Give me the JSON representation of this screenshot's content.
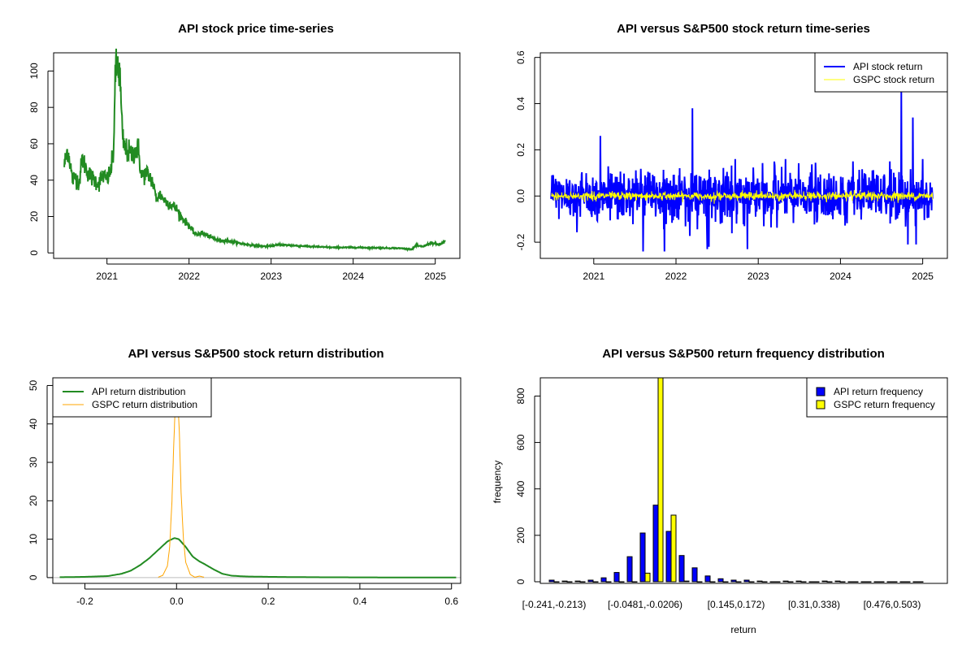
{
  "chart_data": [
    {
      "type": "line",
      "title": "API stock price time-series",
      "xlabel": "",
      "ylabel": "",
      "xlim": [
        2020.35,
        2025.3
      ],
      "ylim": [
        -3,
        110
      ],
      "x_ticks": [
        "2021",
        "2022",
        "2023",
        "2024",
        "2025"
      ],
      "x_tick_values": [
        2021,
        2022,
        2023,
        2024,
        2025
      ],
      "y_ticks": [
        "0",
        "20",
        "40",
        "60",
        "80",
        "100"
      ],
      "y_tick_values": [
        0,
        20,
        40,
        60,
        80,
        100
      ],
      "grid": false,
      "series": [
        {
          "name": "API price",
          "color": "#228b22",
          "x": [
            2020.48,
            2020.52,
            2020.55,
            2020.58,
            2020.62,
            2020.66,
            2020.7,
            2020.75,
            2020.8,
            2020.85,
            2020.9,
            2020.95,
            2021.0,
            2021.05,
            2021.08,
            2021.1,
            2021.13,
            2021.16,
            2021.19,
            2021.22,
            2021.3,
            2021.38,
            2021.42,
            2021.48,
            2021.55,
            2021.6,
            2021.65,
            2021.72,
            2021.8,
            2021.85,
            2021.92,
            2022.0,
            2022.08,
            2022.15,
            2022.25,
            2022.35,
            2022.5,
            2022.65,
            2022.8,
            2022.95,
            2023.1,
            2023.3,
            2023.5,
            2023.75,
            2024.0,
            2024.3,
            2024.6,
            2024.72,
            2024.76,
            2024.85,
            2024.95,
            2025.05,
            2025.12
          ],
          "values": [
            48,
            57,
            50,
            40,
            42,
            38,
            52,
            46,
            42,
            40,
            38,
            43,
            40,
            46,
            55,
            96,
            105,
            95,
            63,
            57,
            54,
            58,
            42,
            44,
            40,
            30,
            32,
            28,
            26,
            24,
            19,
            15,
            10,
            11,
            9,
            7,
            6.5,
            5,
            4,
            3.5,
            4.5,
            4,
            3.5,
            3,
            3,
            2.8,
            2.5,
            2,
            4,
            3.5,
            5.5,
            4.5,
            6.5
          ]
        }
      ]
    },
    {
      "type": "line",
      "title": "API versus S&P500 stock return time-series",
      "xlabel": "",
      "ylabel": "",
      "xlim": [
        2020.35,
        2025.3
      ],
      "ylim": [
        -0.27,
        0.62
      ],
      "x_ticks": [
        "2021",
        "2022",
        "2023",
        "2024",
        "2025"
      ],
      "x_tick_values": [
        2021,
        2022,
        2023,
        2024,
        2025
      ],
      "y_ticks": [
        "-0.2",
        "0.0",
        "0.2",
        "0.4",
        "0.6"
      ],
      "y_tick_values": [
        -0.2,
        0.0,
        0.2,
        0.4,
        0.6
      ],
      "grid": false,
      "legend_position": "top-right",
      "series": [
        {
          "name": "API stock return",
          "color": "#0000ff",
          "x_range": [
            2020.48,
            2025.12
          ],
          "std": 0.055,
          "spikes": [
            [
              2021.08,
              0.26
            ],
            [
              2021.6,
              -0.24
            ],
            [
              2021.86,
              -0.24
            ],
            [
              2022.2,
              0.38
            ],
            [
              2022.38,
              -0.23
            ],
            [
              2022.72,
              0.16
            ],
            [
              2022.4,
              -0.22
            ],
            [
              2022.87,
              -0.23
            ],
            [
              2024.15,
              0.15
            ],
            [
              2024.6,
              0.15
            ],
            [
              2024.74,
              0.46
            ],
            [
              2024.82,
              -0.21
            ],
            [
              2024.88,
              0.34
            ],
            [
              2024.92,
              -0.21
            ],
            [
              2025.0,
              0.16
            ]
          ]
        },
        {
          "name": "GSPC stock return",
          "color": "#ffff00",
          "x_range": [
            2020.48,
            2025.12
          ],
          "std": 0.009
        }
      ]
    },
    {
      "type": "line",
      "title": "API versus S&P500 stock return distribution",
      "xlabel": "",
      "ylabel": "",
      "xlim": [
        -0.27,
        0.62
      ],
      "ylim": [
        -1.5,
        52
      ],
      "x_ticks": [
        "-0.2",
        "0.0",
        "0.2",
        "0.4",
        "0.6"
      ],
      "x_tick_values": [
        -0.2,
        0.0,
        0.2,
        0.4,
        0.6
      ],
      "y_ticks": [
        "0",
        "10",
        "20",
        "30",
        "40",
        "50"
      ],
      "y_tick_values": [
        0,
        10,
        20,
        30,
        40,
        50
      ],
      "grid": false,
      "legend_position": "top-left",
      "series": [
        {
          "name": "API return distribution",
          "color": "#228b22",
          "x": [
            -0.255,
            -0.2,
            -0.15,
            -0.12,
            -0.1,
            -0.08,
            -0.06,
            -0.04,
            -0.02,
            -0.005,
            0.005,
            0.02,
            0.035,
            0.05,
            0.06,
            0.08,
            0.1,
            0.12,
            0.15,
            0.2,
            0.3,
            0.45,
            0.61
          ],
          "values": [
            0.1,
            0.2,
            0.4,
            1.0,
            1.8,
            3.2,
            5.0,
            7.2,
            9.4,
            10.3,
            10.0,
            8.0,
            5.5,
            4.2,
            3.6,
            2.2,
            1.0,
            0.5,
            0.3,
            0.2,
            0.1,
            0.05,
            0.05
          ]
        },
        {
          "name": "GSPC return distribution",
          "color": "#ffa500",
          "x": [
            -0.04,
            -0.03,
            -0.02,
            -0.015,
            -0.01,
            -0.006,
            -0.003,
            0.0,
            0.003,
            0.006,
            0.01,
            0.015,
            0.02,
            0.03,
            0.04,
            0.05,
            0.06
          ],
          "values": [
            0.1,
            0.6,
            3,
            8,
            20,
            35,
            44,
            48,
            46,
            38,
            22,
            10,
            4,
            0.8,
            0.1,
            0.4,
            0.1
          ]
        }
      ]
    },
    {
      "type": "bar",
      "title": "API versus S&P500 return frequency distribution",
      "xlabel": "return",
      "ylabel": "frequency",
      "ylim": [
        0,
        840
      ],
      "y_ticks": [
        "0",
        "200",
        "400",
        "600",
        "800"
      ],
      "y_tick_values": [
        0,
        200,
        400,
        600,
        800
      ],
      "grid": false,
      "legend_position": "top-right",
      "category_count": 29,
      "visible_category_labels": [
        {
          "index": 0,
          "label": "[-0.241,-0.213)"
        },
        {
          "index": 7,
          "label": "[-0.0481,-0.0206)"
        },
        {
          "index": 14,
          "label": "[0.145,0.172)"
        },
        {
          "index": 20,
          "label": "[0.31,0.338)"
        },
        {
          "index": 26,
          "label": "[0.476,0.503)"
        }
      ],
      "series": [
        {
          "name": "API return frequency",
          "color": "#0000ff",
          "values": [
            7,
            3,
            3,
            7,
            17,
            40,
            108,
            210,
            330,
            217,
            113,
            60,
            25,
            13,
            7,
            7,
            3,
            0,
            3,
            3,
            0,
            3,
            3,
            0,
            0,
            0,
            0,
            0,
            0
          ]
        },
        {
          "name": "GSPC return frequency",
          "color": "#ffff00",
          "values": [
            0,
            0,
            0,
            0,
            0,
            0,
            0,
            37,
            900,
            287,
            3,
            0,
            0,
            0,
            0,
            0,
            0,
            0,
            0,
            0,
            0,
            0,
            0,
            0,
            0,
            0,
            0,
            0,
            0
          ]
        }
      ]
    }
  ]
}
